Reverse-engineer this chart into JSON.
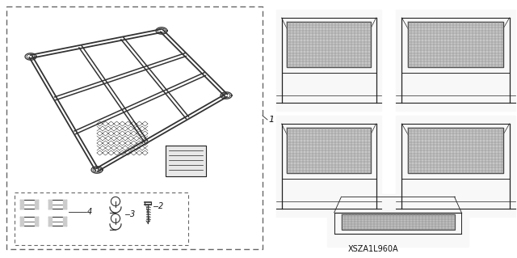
{
  "bg_color": "#ffffff",
  "line_color": "#333333",
  "dark_color": "#222222",
  "dashed_color": "#666666",
  "gray_color": "#aaaaaa",
  "label_color": "#111111",
  "fig_width": 6.4,
  "fig_height": 3.19,
  "dpi": 100,
  "part_number": "XSZA1L960A",
  "font_size_label": 7,
  "font_size_partnum": 7,
  "font_size_num": 8
}
